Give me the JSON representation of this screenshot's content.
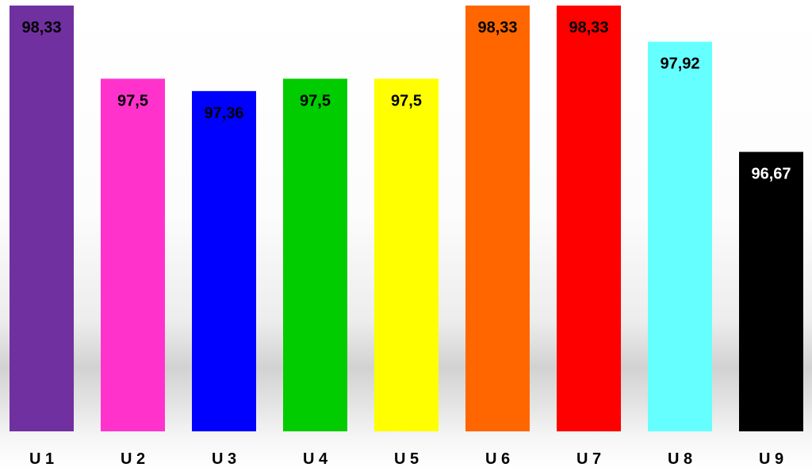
{
  "chart_data": {
    "type": "bar",
    "title": "",
    "xlabel": "",
    "ylabel": "",
    "categories": [
      "U 1",
      "U 2",
      "U 3",
      "U 4",
      "U 5",
      "U 6",
      "U 7",
      "U 8",
      "U 9"
    ],
    "values": [
      98.33,
      97.5,
      97.36,
      97.5,
      97.5,
      98.33,
      98.33,
      97.92,
      96.67
    ],
    "value_labels": [
      "98,33",
      "97,5",
      "97,36",
      "97,5",
      "97,5",
      "98,33",
      "98,33",
      "97,92",
      "96,67"
    ],
    "colors": [
      "#7030a0",
      "#ff33cc",
      "#0000ff",
      "#00cc00",
      "#ffff00",
      "#ff6600",
      "#ff0000",
      "#66ffff",
      "#000000"
    ],
    "label_colors": [
      "#000000",
      "#000000",
      "#000000",
      "#000000",
      "#000000",
      "#000000",
      "#000000",
      "#000000",
      "#ffffff"
    ],
    "ylim": [
      93.5,
      98.33
    ],
    "grid": false,
    "legend": "none"
  }
}
